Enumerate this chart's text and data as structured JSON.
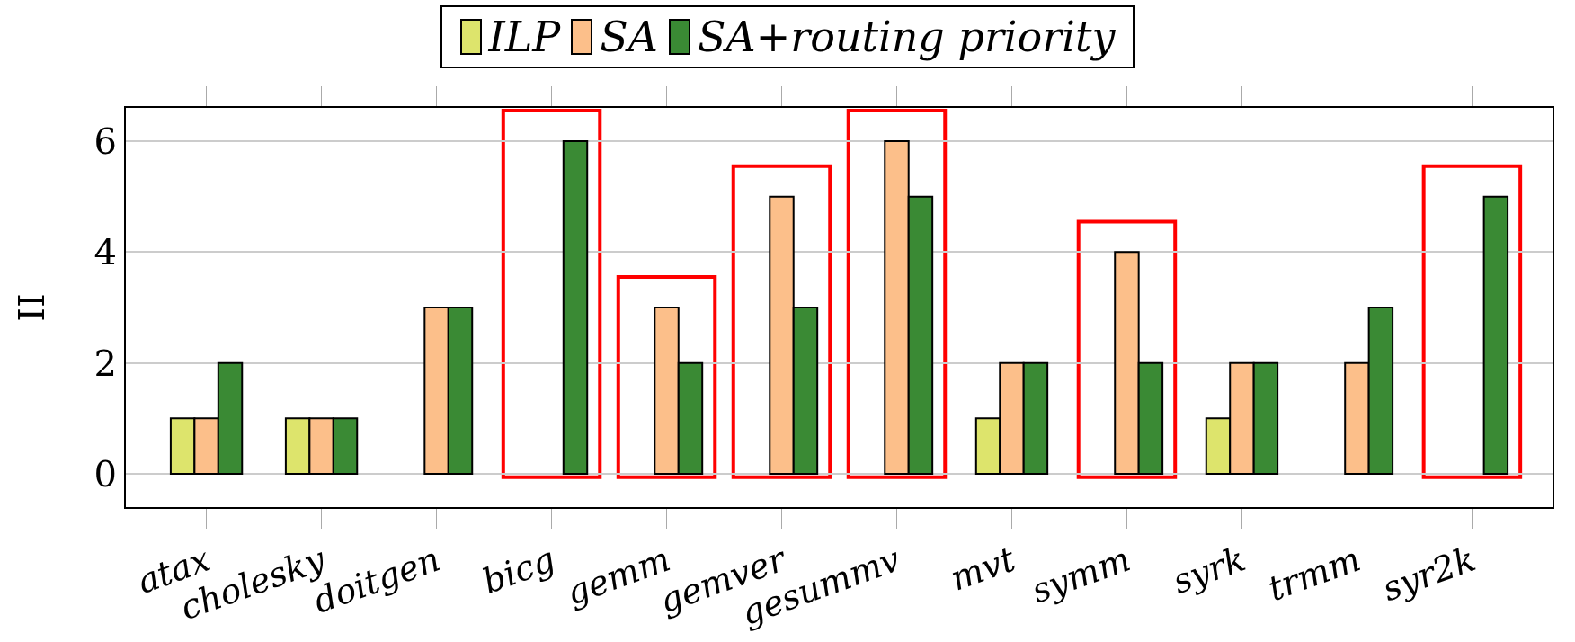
{
  "chart_data": {
    "type": "bar",
    "ylabel": "II",
    "categories": [
      "atax",
      "cholesky",
      "doitgen",
      "bicg",
      "gemm",
      "gemver",
      "gesummv",
      "mvt",
      "symm",
      "syrk",
      "trmm",
      "syr2k"
    ],
    "series": [
      {
        "name": "ILP",
        "color": "#dde46c",
        "values": [
          1,
          1,
          0,
          0,
          0,
          0,
          0,
          1,
          0,
          1,
          0,
          0
        ]
      },
      {
        "name": "SA",
        "color": "#fcbf8a",
        "values": [
          1,
          1,
          3,
          0,
          3,
          5,
          6,
          2,
          4,
          2,
          2,
          0
        ]
      },
      {
        "name": "SA+routing priority",
        "color": "#3a8a34",
        "values": [
          2,
          1,
          3,
          6,
          2,
          3,
          5,
          2,
          2,
          2,
          3,
          5
        ]
      }
    ],
    "ylim": [
      -0.6,
      6.6
    ],
    "yticks": [
      0,
      2,
      4,
      6
    ],
    "grid": "y",
    "legend": "top"
  }
}
